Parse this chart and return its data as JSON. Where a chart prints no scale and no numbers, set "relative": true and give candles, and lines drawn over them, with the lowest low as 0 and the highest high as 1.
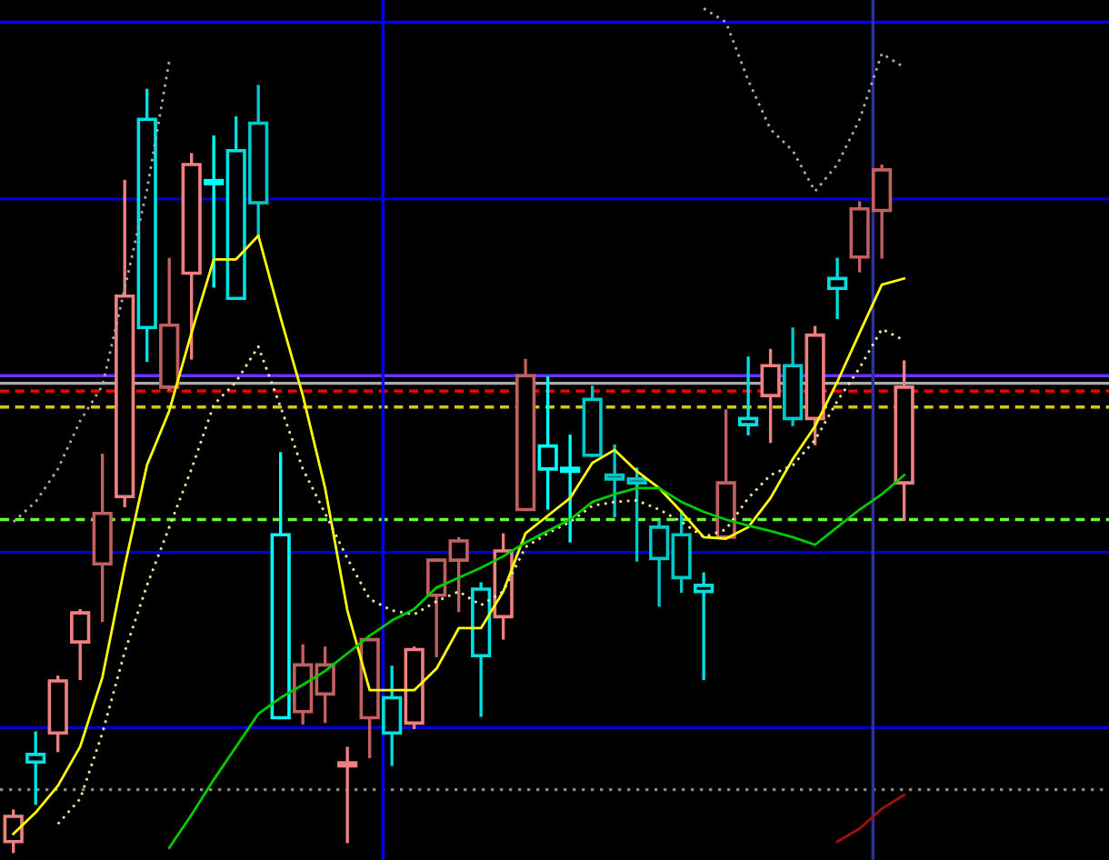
{
  "chart_data": {
    "type": "candlestick",
    "relative": true,
    "categories": [
      null,
      null,
      null,
      null,
      null,
      null,
      null,
      null,
      null,
      null,
      null,
      null,
      null,
      null,
      null,
      null,
      null,
      null,
      null,
      null,
      null,
      null,
      null,
      null,
      null,
      null,
      null,
      null,
      null,
      null,
      null,
      null,
      null,
      null,
      null,
      null,
      null,
      null,
      null,
      null,
      null
    ],
    "ohlc": [
      [
        0.013,
        0.053,
        0.0,
        0.046
      ],
      [
        0.127,
        0.155,
        0.063,
        0.117
      ],
      [
        0.155,
        0.228,
        0.132,
        0.223
      ],
      [
        0.274,
        0.315,
        0.226,
        0.312
      ],
      [
        0.376,
        0.518,
        0.302,
        0.442
      ],
      [
        0.464,
        0.876,
        0.452,
        0.726
      ],
      [
        0.957,
        0.995,
        0.642,
        0.685
      ],
      [
        0.607,
        0.774,
        0.604,
        0.688
      ],
      [
        0.756,
        0.911,
        0.645,
        0.898
      ],
      [
        0.876,
        0.934,
        0.739,
        0.873
      ],
      [
        0.916,
        0.959,
        0.723,
        0.723
      ],
      [
        0.952,
        1.0,
        0.805,
        0.848
      ],
      [
        0.414,
        0.52,
        0.175,
        0.175
      ],
      [
        0.183,
        0.269,
        0.168,
        0.244
      ],
      [
        0.206,
        0.266,
        0.17,
        0.244
      ],
      [
        0.112,
        0.135,
        0.013,
        0.114
      ],
      [
        0.175,
        0.277,
        0.124,
        0.277
      ],
      [
        0.201,
        0.241,
        0.114,
        0.155
      ],
      [
        0.168,
        0.266,
        0.162,
        0.264
      ],
      [
        0.335,
        0.381,
        0.256,
        0.381
      ],
      [
        0.381,
        0.409,
        0.315,
        0.406
      ],
      [
        0.343,
        0.35,
        0.178,
        0.256
      ],
      [
        0.307,
        0.414,
        0.279,
        0.393
      ],
      [
        0.447,
        0.642,
        0.447,
        0.622
      ],
      [
        0.53,
        0.619,
        0.449,
        0.5
      ],
      [
        0.5,
        0.543,
        0.406,
        0.497
      ],
      [
        0.591,
        0.607,
        0.518,
        0.518
      ],
      [
        0.492,
        0.53,
        0.439,
        0.487
      ],
      [
        0.487,
        0.5,
        0.381,
        0.482
      ],
      [
        0.424,
        0.431,
        0.322,
        0.383
      ],
      [
        0.414,
        0.444,
        0.34,
        0.358
      ],
      [
        0.348,
        0.363,
        0.226,
        0.34
      ],
      [
        0.411,
        0.576,
        0.411,
        0.482
      ],
      [
        0.566,
        0.645,
        0.546,
        0.558
      ],
      [
        0.596,
        0.655,
        0.536,
        0.635
      ],
      [
        0.635,
        0.683,
        0.558,
        0.566
      ],
      [
        0.566,
        0.685,
        0.533,
        0.675
      ],
      [
        0.749,
        0.774,
        0.698,
        0.736
      ],
      [
        0.777,
        0.848,
        0.759,
        0.84
      ],
      [
        0.838,
        0.896,
        0.777,
        0.891
      ],
      [
        0.482,
        0.64,
        0.434,
        0.607
      ]
    ],
    "colors": [
      "#f08080",
      "#00e0e0",
      "#f08080",
      "#f08080",
      "#c06060",
      "#f08080",
      "#00e0e0",
      "#c06060",
      "#f08080",
      "#00ffff",
      "#00e0e0",
      "#00c8c8",
      "#00ffff",
      "#c06060",
      "#c06060",
      "#f08080",
      "#c06060",
      "#00e0e0",
      "#f08080",
      "#c06060",
      "#c06060",
      "#00e0e0",
      "#f08080",
      "#c06060",
      "#00ffff",
      "#00ffff",
      "#00c8c8",
      "#00c8c8",
      "#00c8c8",
      "#00c8c8",
      "#00c8c8",
      "#00e0e0",
      "#c06060",
      "#00e0e0",
      "#f08080",
      "#00c8c8",
      "#f08080",
      "#00e0e0",
      "#c06060",
      "#c06060",
      "#f08080"
    ],
    "series": [
      {
        "type": "line",
        "color": "#ffff00",
        "line_style": "solid",
        "values": [
          0.023,
          0.051,
          0.086,
          0.137,
          0.228,
          0.373,
          0.505,
          0.576,
          0.678,
          0.774,
          0.774,
          0.805,
          0.698,
          0.596,
          0.475,
          0.315,
          0.211,
          0.211,
          0.211,
          0.239,
          0.292,
          0.292,
          0.34,
          0.416,
          0.439,
          0.462,
          0.508,
          0.525,
          0.497,
          0.475,
          0.444,
          0.411,
          0.409,
          0.424,
          0.462,
          0.513,
          0.556,
          0.614,
          0.678,
          0.741,
          0.749
        ]
      },
      {
        "type": "line",
        "color": "#e8e89a",
        "line_style": "dotted",
        "values": [
          null,
          null,
          0.036,
          0.069,
          0.155,
          0.261,
          0.348,
          0.424,
          0.5,
          0.584,
          0.614,
          0.66,
          0.581,
          0.5,
          0.442,
          0.383,
          0.33,
          0.315,
          0.31,
          0.327,
          0.34,
          0.322,
          0.34,
          0.398,
          0.416,
          0.431,
          0.452,
          0.457,
          0.459,
          0.447,
          0.431,
          0.411,
          0.421,
          0.462,
          0.492,
          0.505,
          0.538,
          0.589,
          0.632,
          0.683,
          0.668
        ]
      },
      {
        "type": "line",
        "color": "#00cc00",
        "line_style": "solid",
        "values": [
          null,
          null,
          null,
          null,
          null,
          null,
          null,
          0.005,
          0.048,
          0.094,
          0.137,
          0.18,
          0.201,
          0.218,
          0.236,
          0.259,
          0.282,
          0.302,
          0.317,
          0.345,
          0.358,
          0.371,
          0.386,
          0.404,
          0.419,
          0.434,
          0.457,
          0.467,
          0.475,
          0.475,
          0.457,
          0.444,
          0.434,
          0.426,
          0.419,
          0.411,
          0.401,
          0.424,
          0.447,
          0.467,
          0.492
        ]
      },
      {
        "type": "line",
        "color": "#aaaaaa",
        "line_style": "dotted",
        "values": [
          0.431,
          0.457,
          0.5,
          0.563,
          0.609,
          0.736,
          0.865,
          1.033,
          null,
          null,
          null,
          null,
          null,
          null,
          null,
          null,
          null,
          null,
          null,
          null,
          null,
          null,
          null,
          null,
          null,
          null,
          null,
          null,
          null,
          null,
          null,
          1.102,
          1.084,
          1.008,
          0.944,
          0.916,
          0.863,
          0.898,
          0.957,
          1.043,
          1.025
        ]
      },
      {
        "type": "line",
        "color": "#a01010",
        "line_style": "solid",
        "values": [
          null,
          null,
          null,
          null,
          null,
          null,
          null,
          null,
          null,
          null,
          null,
          null,
          null,
          null,
          null,
          null,
          null,
          null,
          null,
          null,
          null,
          null,
          null,
          null,
          null,
          null,
          null,
          null,
          null,
          null,
          null,
          null,
          null,
          null,
          null,
          null,
          null,
          0.013,
          0.03,
          0.056,
          0.074
        ]
      }
    ],
    "ref_lines": [
      {
        "axis": "y",
        "value": 1.084,
        "color": "#0000ff",
        "line_style": "solid"
      },
      {
        "axis": "y",
        "value": 0.853,
        "color": "#0000cc",
        "line_style": "solid"
      },
      {
        "axis": "y",
        "value": 0.622,
        "color": "#6633ff",
        "line_style": "solid"
      },
      {
        "axis": "y",
        "value": 0.612,
        "color": "#aaaaaa",
        "line_style": "solid"
      },
      {
        "axis": "y",
        "value": 0.602,
        "color": "#ff0000",
        "line_style": "dashed"
      },
      {
        "axis": "y",
        "value": 0.581,
        "color": "#cccc00",
        "line_style": "dashed"
      },
      {
        "axis": "y",
        "value": 0.434,
        "color": "#66ff33",
        "line_style": "dashed"
      },
      {
        "axis": "y",
        "value": 0.391,
        "color": "#0000cc",
        "line_style": "solid"
      },
      {
        "axis": "y",
        "value": 0.162,
        "color": "#0000cc",
        "line_style": "solid"
      },
      {
        "axis": "y",
        "value": 0.081,
        "color": "#888888",
        "line_style": "dotted"
      }
    ]
  }
}
